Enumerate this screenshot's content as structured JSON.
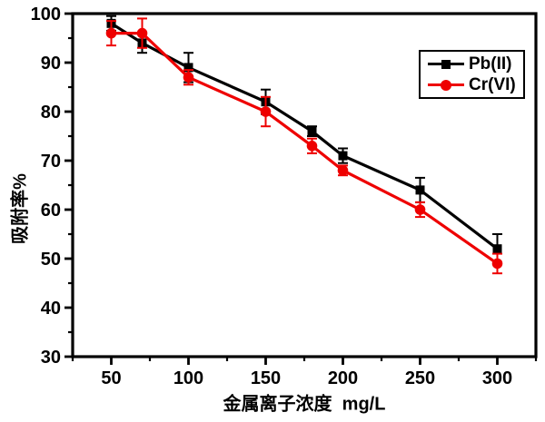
{
  "chart_data": {
    "type": "line",
    "title": "",
    "xlabel": "金属离子浓度  mg/L",
    "ylabel": "吸附率%",
    "xlim": [
      25,
      325
    ],
    "ylim": [
      30,
      100
    ],
    "x_major_ticks": [
      50,
      100,
      150,
      200,
      250,
      300
    ],
    "x_minor_ticks": [
      25,
      75,
      125,
      175,
      225,
      275,
      325
    ],
    "y_major_ticks": [
      30,
      40,
      50,
      60,
      70,
      80,
      90,
      100
    ],
    "y_minor_ticks": [
      35,
      45,
      55,
      65,
      75,
      85,
      95
    ],
    "grid": false,
    "legend_position": "top-right",
    "frame": true,
    "axis_color": "#000000",
    "x": [
      50,
      70,
      100,
      150,
      180,
      200,
      250,
      300
    ],
    "series": [
      {
        "name": "Pb(II)",
        "color": "#000000",
        "marker": "square",
        "values": [
          98,
          94,
          89,
          82,
          76,
          71,
          64,
          52
        ],
        "errors": [
          1.5,
          2,
          3,
          2.5,
          1,
          1.5,
          2.5,
          3
        ]
      },
      {
        "name": "Cr(VI)",
        "color": "#ee0000",
        "marker": "circle",
        "values": [
          96,
          96,
          87,
          80,
          73,
          68,
          60,
          49
        ],
        "errors": [
          2.5,
          3,
          1.5,
          3,
          1.5,
          1,
          1.5,
          2
        ]
      }
    ]
  }
}
